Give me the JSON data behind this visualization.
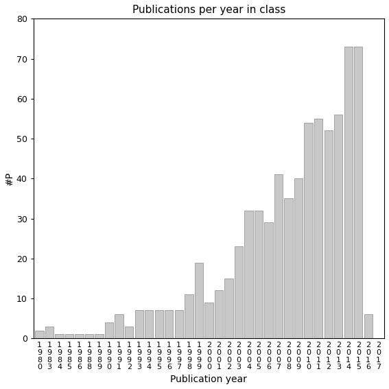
{
  "title": "Publications per year in class",
  "xlabel": "Publication year",
  "ylabel": "#P",
  "ylim": [
    0,
    80
  ],
  "yticks": [
    0,
    10,
    20,
    30,
    40,
    50,
    60,
    70,
    80
  ],
  "bar_color": "#c8c8c8",
  "bar_edgecolor": "#888888",
  "background_color": "#ffffff",
  "categories": [
    "1980",
    "1983",
    "1984",
    "1985",
    "1986",
    "1988",
    "1989",
    "1990",
    "1991",
    "1992",
    "1993",
    "1994",
    "1995",
    "1996",
    "1997",
    "1998",
    "1999",
    "2000",
    "2001",
    "2002",
    "2003",
    "2004",
    "2005",
    "2006",
    "2007",
    "2008",
    "2009",
    "2010",
    "2011",
    "2012",
    "2013",
    "2014",
    "2015",
    "2016",
    "2017"
  ],
  "values": [
    2,
    3,
    1,
    1,
    1,
    1,
    1,
    4,
    6,
    3,
    7,
    7,
    7,
    7,
    7,
    11,
    19,
    9,
    12,
    15,
    23,
    32,
    32,
    29,
    41,
    35,
    40,
    54,
    55,
    52,
    56,
    73,
    73,
    6,
    0
  ]
}
